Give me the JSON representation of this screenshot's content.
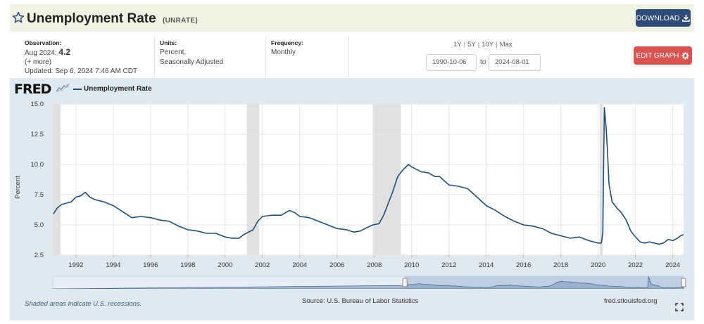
{
  "header": {
    "title": "Unemployment Rate",
    "series_id": "(UNRATE)",
    "download_label": "DOWNLOAD"
  },
  "observation": {
    "label": "Observation:",
    "period": "Aug 2024:",
    "value": "4.2",
    "more": "(+ more)",
    "updated_label": "Updated:",
    "updated_value": "Sep 6, 2024 7:46 AM CDT"
  },
  "units": {
    "label": "Units:",
    "line1": "Percent,",
    "line2": "Seasonally Adjusted"
  },
  "frequency": {
    "label": "Frequency:",
    "value": "Monthly"
  },
  "range": {
    "periods": [
      "1Y",
      "5Y",
      "10Y",
      "Max"
    ],
    "start": "1990-10-06",
    "to": "to",
    "end": "2024-08-01"
  },
  "edit_label": "EDIT GRAPH",
  "graph": {
    "logo": "FRED",
    "footer_note": "Shaded areas indicate U.S. recessions.",
    "source": "Source: U.S. Bureau of Labor Statistics",
    "site": "fred.stlouisfed.org"
  },
  "colors": {
    "line": "#1f4e79",
    "recession": "#e0e0e0",
    "panel": "#e1e9f0",
    "download": "#2e4b79",
    "edit": "#d9534f"
  },
  "chart_data": {
    "type": "line",
    "ylabel": "Percent",
    "ylim": [
      2.5,
      15.0
    ],
    "yticks": [
      "2.5",
      "5.0",
      "7.5",
      "10.0",
      "12.5",
      "15.0"
    ],
    "xlim": [
      1990.76,
      2024.58
    ],
    "xticks": [
      "1992",
      "1994",
      "1996",
      "1998",
      "2000",
      "2002",
      "2004",
      "2006",
      "2008",
      "2010",
      "2012",
      "2014",
      "2016",
      "2018",
      "2020",
      "2022",
      "2024"
    ],
    "recessions": [
      [
        1990.5,
        1991.17
      ],
      [
        2001.17,
        2001.83
      ],
      [
        2007.92,
        2009.42
      ],
      [
        2020.08,
        2020.25
      ]
    ],
    "grid": true,
    "series": [
      {
        "name": "Unemployment Rate",
        "x": [
          1990.79,
          1991.0,
          1991.25,
          1991.5,
          1991.75,
          1992.0,
          1992.25,
          1992.5,
          1992.75,
          1993.0,
          1993.5,
          1994.0,
          1994.5,
          1995.0,
          1995.5,
          1996.0,
          1996.5,
          1997.0,
          1997.5,
          1998.0,
          1998.5,
          1999.0,
          1999.5,
          2000.0,
          2000.33,
          2000.75,
          2001.0,
          2001.25,
          2001.5,
          2001.75,
          2002.0,
          2002.5,
          2003.0,
          2003.45,
          2003.75,
          2004.0,
          2004.5,
          2005.0,
          2005.5,
          2006.0,
          2006.5,
          2006.9,
          2007.25,
          2007.5,
          2007.92,
          2008.25,
          2008.5,
          2008.75,
          2009.0,
          2009.25,
          2009.5,
          2009.83,
          2010.0,
          2010.5,
          2010.9,
          2011.25,
          2011.5,
          2012.0,
          2012.5,
          2013.0,
          2013.5,
          2014.0,
          2014.5,
          2015.0,
          2015.5,
          2016.0,
          2016.5,
          2017.0,
          2017.5,
          2018.0,
          2018.5,
          2019.0,
          2019.5,
          2020.0,
          2020.17,
          2020.25,
          2020.33,
          2020.42,
          2020.5,
          2020.58,
          2020.75,
          2021.0,
          2021.25,
          2021.5,
          2021.75,
          2022.0,
          2022.25,
          2022.5,
          2022.75,
          2023.0,
          2023.25,
          2023.5,
          2023.75,
          2024.0,
          2024.25,
          2024.42,
          2024.58
        ],
        "values": [
          5.9,
          6.4,
          6.7,
          6.8,
          6.9,
          7.3,
          7.4,
          7.7,
          7.3,
          7.1,
          6.9,
          6.6,
          6.1,
          5.6,
          5.7,
          5.6,
          5.4,
          5.3,
          4.9,
          4.6,
          4.5,
          4.3,
          4.3,
          4.0,
          3.9,
          3.9,
          4.2,
          4.4,
          4.6,
          5.3,
          5.7,
          5.8,
          5.8,
          6.2,
          6.0,
          5.7,
          5.6,
          5.3,
          5.0,
          4.7,
          4.6,
          4.4,
          4.5,
          4.7,
          5.0,
          5.1,
          5.8,
          6.8,
          7.8,
          9.0,
          9.5,
          10.0,
          9.8,
          9.4,
          9.3,
          9.0,
          9.0,
          8.3,
          8.2,
          8.0,
          7.3,
          6.6,
          6.2,
          5.7,
          5.3,
          5.0,
          4.9,
          4.7,
          4.3,
          4.1,
          3.9,
          4.0,
          3.7,
          3.5,
          3.5,
          4.4,
          14.7,
          13.2,
          11.1,
          8.4,
          6.9,
          6.4,
          6.0,
          5.4,
          4.5,
          4.0,
          3.6,
          3.5,
          3.6,
          3.5,
          3.4,
          3.5,
          3.8,
          3.7,
          3.9,
          4.1,
          4.2
        ]
      }
    ]
  }
}
